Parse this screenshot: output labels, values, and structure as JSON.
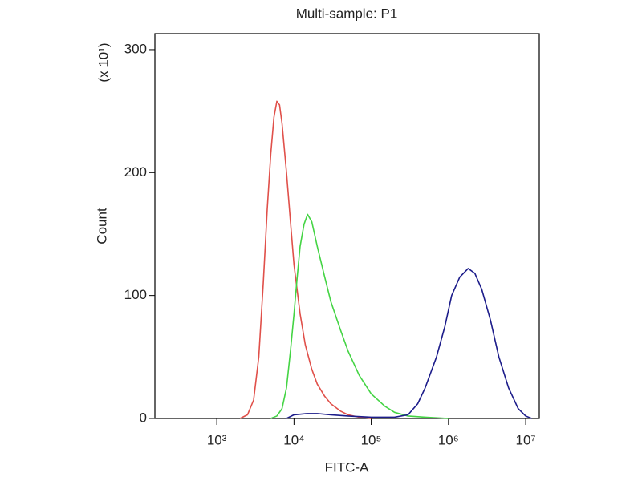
{
  "chart_data": {
    "type": "histogram-overlay",
    "title": "Multi-sample: P1",
    "x_label": "FITC-A",
    "y_label": "Count",
    "y_scale_note": "(x 10¹)",
    "x_log": true,
    "xlim": [
      158,
      15000000
    ],
    "xticks": [
      {
        "value": 1000,
        "label": "10³"
      },
      {
        "value": 10000,
        "label": "10⁴"
      },
      {
        "value": 100000,
        "label": "10⁵"
      },
      {
        "value": 1000000,
        "label": "10⁶"
      },
      {
        "value": 10000000,
        "label": "10⁷"
      }
    ],
    "ylim": [
      0,
      313
    ],
    "yticks": [
      0,
      100,
      200,
      300
    ],
    "series": [
      {
        "color": "#e0504a",
        "x": [
          2000,
          2500,
          3000,
          3500,
          4000,
          4500,
          5000,
          5500,
          6000,
          6500,
          7000,
          8000,
          9000,
          10000,
          12000,
          14000,
          17000,
          20000,
          25000,
          30000,
          40000,
          50000,
          70000,
          100000
        ],
        "values": [
          0,
          3,
          15,
          50,
          110,
          170,
          215,
          245,
          258,
          255,
          240,
          200,
          160,
          125,
          85,
          60,
          40,
          28,
          18,
          12,
          6,
          3,
          1,
          0
        ]
      },
      {
        "color": "#44d444",
        "x": [
          5000,
          6000,
          7000,
          8000,
          9000,
          10000,
          11000,
          12000,
          13500,
          15000,
          17000,
          20000,
          25000,
          30000,
          40000,
          50000,
          70000,
          100000,
          150000,
          200000,
          300000,
          500000,
          1000000
        ],
        "values": [
          0,
          2,
          8,
          25,
          55,
          85,
          115,
          140,
          158,
          166,
          160,
          140,
          115,
          95,
          72,
          55,
          35,
          20,
          10,
          5,
          2,
          1,
          0
        ]
      },
      {
        "color": "#1c1c8a",
        "x": [
          8000,
          10000,
          15000,
          20000,
          30000,
          50000,
          100000,
          200000,
          300000,
          400000,
          500000,
          700000,
          900000,
          1100000,
          1400000,
          1800000,
          2200000,
          2700000,
          3500000,
          4500000,
          6000000,
          8000000,
          10000000,
          12000000
        ],
        "values": [
          0,
          3,
          4,
          4,
          3,
          2,
          1,
          1,
          3,
          12,
          25,
          50,
          75,
          100,
          115,
          122,
          118,
          105,
          80,
          50,
          25,
          8,
          2,
          0
        ]
      }
    ]
  }
}
